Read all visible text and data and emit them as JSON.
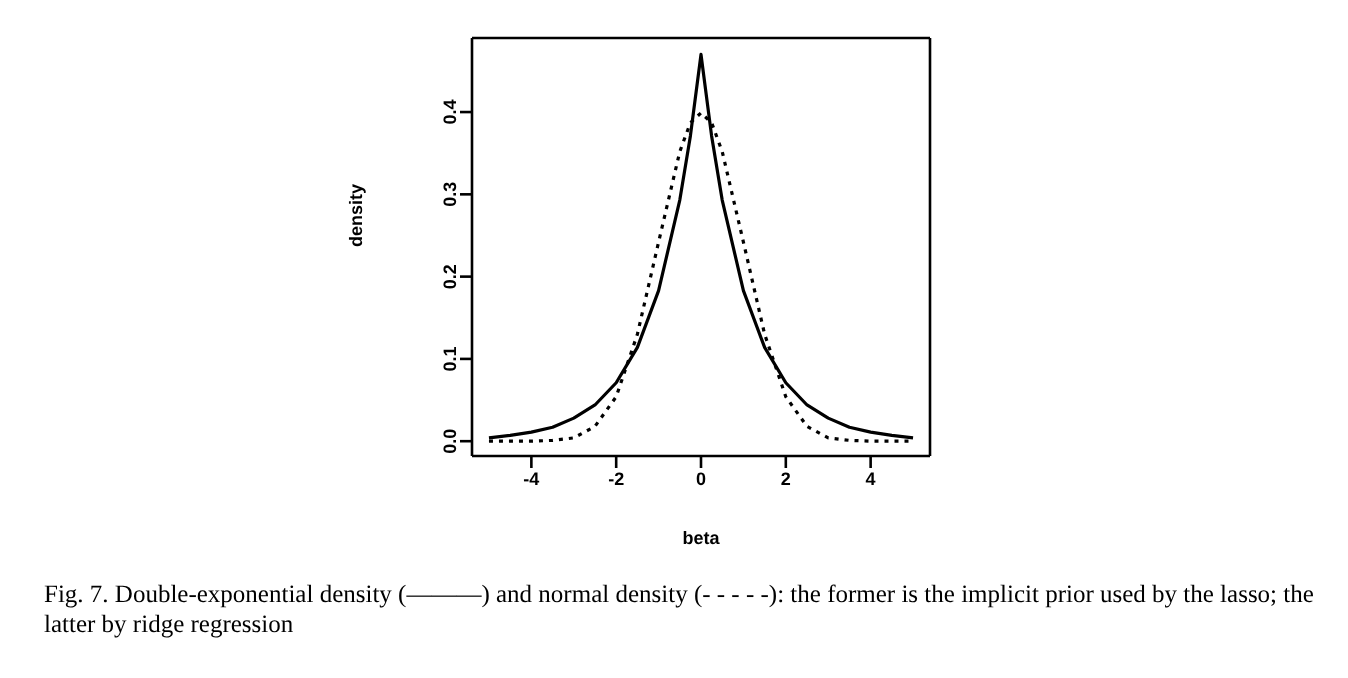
{
  "chart_data": {
    "type": "line",
    "xlabel": "beta",
    "ylabel": "density",
    "x": [
      -5,
      -4.5,
      -4,
      -3.5,
      -3,
      -2.5,
      -2,
      -1.5,
      -1,
      -0.5,
      -0.25,
      0,
      0.25,
      0.5,
      1,
      1.5,
      2,
      2.5,
      3,
      3.5,
      4,
      4.5,
      5
    ],
    "series": [
      {
        "color": "#000000",
        "line_style": "solid",
        "values": [
          0.004,
          0.007,
          0.011,
          0.017,
          0.028,
          0.044,
          0.071,
          0.114,
          0.183,
          0.293,
          0.371,
          0.47,
          0.371,
          0.293,
          0.183,
          0.114,
          0.071,
          0.044,
          0.028,
          0.017,
          0.011,
          0.007,
          0.004
        ]
      },
      {
        "color": "#000000",
        "line_style": "dotted",
        "values": [
          0.0,
          0.0,
          0.0,
          0.001,
          0.004,
          0.018,
          0.054,
          0.13,
          0.242,
          0.352,
          0.387,
          0.399,
          0.387,
          0.352,
          0.242,
          0.13,
          0.054,
          0.018,
          0.004,
          0.001,
          0.0,
          0.0,
          0.0
        ]
      }
    ],
    "xlim": [
      -5.4,
      5.4
    ],
    "xticks": [
      -4,
      -2,
      0,
      2,
      4
    ],
    "ylim": [
      -0.018,
      0.49
    ],
    "yticks": [
      {
        "value": 0,
        "label": "0.0"
      },
      0.1,
      0.2,
      0.3,
      0.4
    ],
    "grid": false,
    "marker": "none",
    "annotations": [
      "Fig. 7.   Double-exponential density (———) and normal density (- - - - -): the former is the implicit prior used by the lasso; the latter by ridge regression"
    ]
  }
}
